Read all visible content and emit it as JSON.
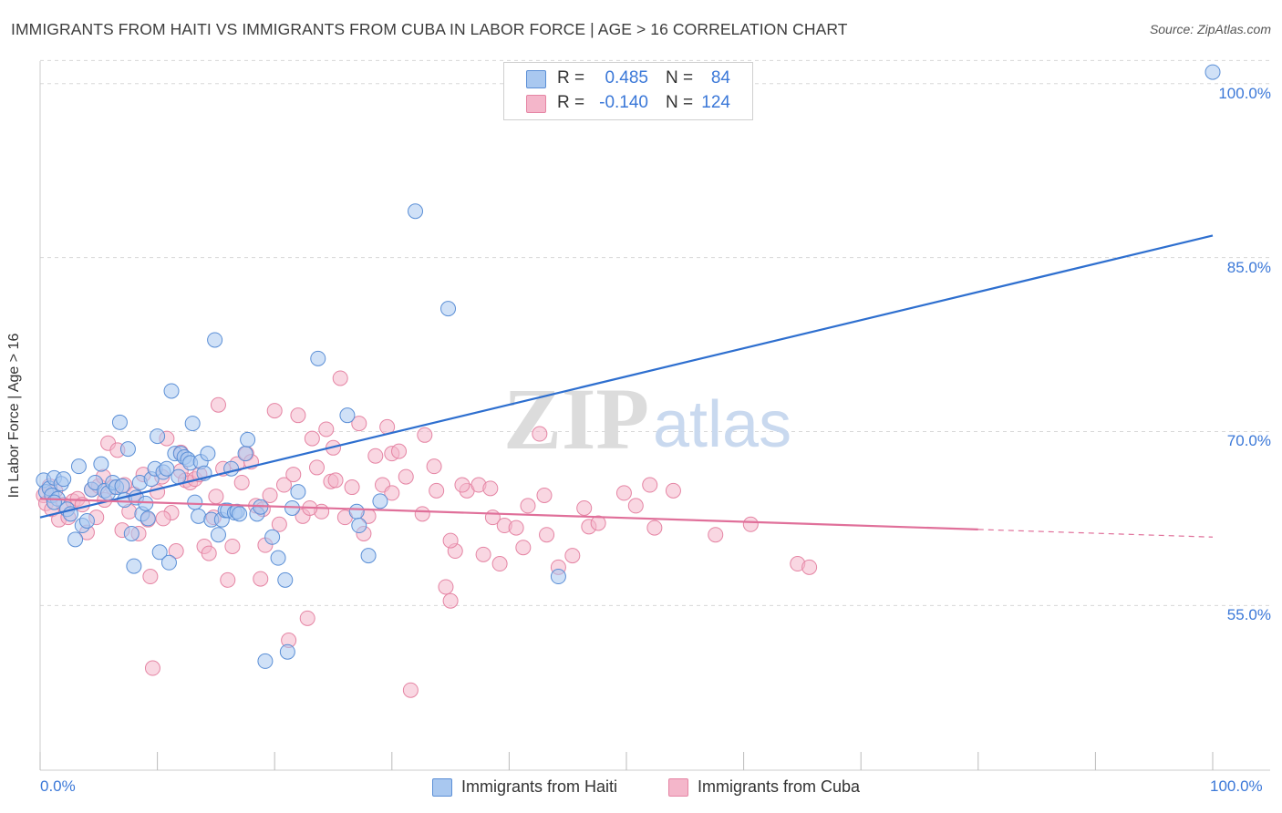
{
  "header": {
    "title": "IMMIGRANTS FROM HAITI VS IMMIGRANTS FROM CUBA IN LABOR FORCE | AGE > 16 CORRELATION CHART",
    "source": "Source: ZipAtlas.com"
  },
  "stats": {
    "r_label": "R =",
    "n_label": "N =",
    "haiti": {
      "r": "0.485",
      "n": "84"
    },
    "cuba": {
      "r": "-0.140",
      "n": "124"
    }
  },
  "watermark": {
    "zip": "ZIP",
    "atlas": "atlas"
  },
  "colors": {
    "haiti_fill": "#a9c8f0",
    "haiti_stroke": "#5b8fd6",
    "haiti_line": "#2e6fcf",
    "cuba_fill": "#f4b6ca",
    "cuba_stroke": "#e585a4",
    "cuba_line": "#e0709a",
    "tick_text": "#3b78d8",
    "grid": "#d8d8d8"
  },
  "chart_data": {
    "type": "scatter",
    "ylabel": "In Labor Force | Age > 16",
    "xlim": [
      0,
      100
    ],
    "ylim": [
      40.8,
      102.5
    ],
    "x_ticks": [
      "0.0%",
      "100.0%"
    ],
    "y_ticks": [
      {
        "value": 100.0,
        "label": "100.0%"
      },
      {
        "value": 85.0,
        "label": "85.0%"
      },
      {
        "value": 70.0,
        "label": "70.0%"
      },
      {
        "value": 55.0,
        "label": "55.0%"
      }
    ],
    "grid": true,
    "legend_position": "bottom-center",
    "series": [
      {
        "name": "Immigrants from Haiti",
        "trend": {
          "x": [
            0,
            100
          ],
          "y": [
            62.6,
            86.9
          ],
          "solid_to": 100
        },
        "points": [
          [
            0.3,
            65.8
          ],
          [
            0.5,
            64.8
          ],
          [
            0.8,
            65.1
          ],
          [
            1.0,
            64.5
          ],
          [
            1.2,
            66.0
          ],
          [
            1.5,
            64.2
          ],
          [
            1.8,
            65.5
          ],
          [
            2.0,
            65.9
          ],
          [
            2.3,
            63.3
          ],
          [
            2.6,
            62.9
          ],
          [
            3.0,
            60.7
          ],
          [
            3.3,
            67.0
          ],
          [
            3.6,
            61.9
          ],
          [
            4.0,
            62.3
          ],
          [
            4.4,
            65.0
          ],
          [
            4.7,
            65.6
          ],
          [
            5.2,
            67.2
          ],
          [
            5.5,
            64.9
          ],
          [
            5.8,
            64.7
          ],
          [
            6.2,
            65.6
          ],
          [
            6.5,
            65.2
          ],
          [
            6.8,
            70.8
          ],
          [
            7.0,
            65.3
          ],
          [
            7.2,
            64.1
          ],
          [
            7.5,
            68.5
          ],
          [
            7.8,
            61.2
          ],
          [
            8.0,
            58.4
          ],
          [
            8.2,
            64.3
          ],
          [
            8.5,
            65.6
          ],
          [
            8.7,
            62.9
          ],
          [
            9.0,
            63.8
          ],
          [
            9.2,
            62.5
          ],
          [
            9.5,
            65.9
          ],
          [
            9.8,
            66.8
          ],
          [
            10.0,
            69.6
          ],
          [
            10.2,
            59.6
          ],
          [
            10.5,
            66.5
          ],
          [
            10.8,
            66.8
          ],
          [
            11.0,
            58.7
          ],
          [
            11.2,
            73.5
          ],
          [
            11.5,
            68.1
          ],
          [
            11.8,
            66.1
          ],
          [
            12.0,
            68.1
          ],
          [
            12.3,
            67.8
          ],
          [
            12.6,
            67.6
          ],
          [
            12.8,
            67.3
          ],
          [
            13.0,
            70.7
          ],
          [
            13.2,
            63.9
          ],
          [
            13.5,
            62.7
          ],
          [
            13.7,
            67.4
          ],
          [
            14.0,
            66.4
          ],
          [
            14.3,
            68.1
          ],
          [
            14.6,
            62.4
          ],
          [
            14.9,
            77.9
          ],
          [
            15.2,
            61.1
          ],
          [
            15.5,
            62.4
          ],
          [
            15.8,
            63.2
          ],
          [
            16.0,
            63.2
          ],
          [
            16.3,
            66.8
          ],
          [
            16.6,
            63.0
          ],
          [
            16.8,
            63.1
          ],
          [
            17.0,
            62.9
          ],
          [
            17.5,
            68.1
          ],
          [
            17.7,
            69.3
          ],
          [
            18.5,
            62.9
          ],
          [
            18.8,
            63.5
          ],
          [
            19.2,
            50.2
          ],
          [
            19.8,
            60.9
          ],
          [
            20.3,
            59.1
          ],
          [
            20.9,
            57.2
          ],
          [
            21.1,
            51.0
          ],
          [
            21.5,
            63.4
          ],
          [
            22.0,
            64.8
          ],
          [
            23.7,
            76.3
          ],
          [
            26.2,
            71.4
          ],
          [
            27.0,
            63.1
          ],
          [
            27.2,
            61.9
          ],
          [
            28.0,
            59.3
          ],
          [
            29.0,
            64.0
          ],
          [
            32.0,
            89.0
          ],
          [
            34.8,
            80.6
          ],
          [
            44.2,
            57.5
          ],
          [
            100.0,
            101.0
          ],
          [
            1.2,
            63.9
          ]
        ]
      },
      {
        "name": "Immigrants from Cuba",
        "trend": {
          "x": [
            0,
            100
          ],
          "y": [
            64.2,
            60.9
          ],
          "solid_to": 80
        },
        "points": [
          [
            0.3,
            64.5
          ],
          [
            0.5,
            63.8
          ],
          [
            0.8,
            65.3
          ],
          [
            1.0,
            63.3
          ],
          [
            1.3,
            64.9
          ],
          [
            1.6,
            62.4
          ],
          [
            2.0,
            63.7
          ],
          [
            2.4,
            62.6
          ],
          [
            2.8,
            64.0
          ],
          [
            3.2,
            64.2
          ],
          [
            3.6,
            63.7
          ],
          [
            4.0,
            61.3
          ],
          [
            4.4,
            65.0
          ],
          [
            4.8,
            62.6
          ],
          [
            5.0,
            65.3
          ],
          [
            5.4,
            66.1
          ],
          [
            5.8,
            69.0
          ],
          [
            6.2,
            65.2
          ],
          [
            6.6,
            68.4
          ],
          [
            7.0,
            61.5
          ],
          [
            7.2,
            65.4
          ],
          [
            7.6,
            63.1
          ],
          [
            8.0,
            64.6
          ],
          [
            8.4,
            61.2
          ],
          [
            8.8,
            66.3
          ],
          [
            9.2,
            62.4
          ],
          [
            9.4,
            57.5
          ],
          [
            9.6,
            49.6
          ],
          [
            10.0,
            64.8
          ],
          [
            10.4,
            66.1
          ],
          [
            10.8,
            69.4
          ],
          [
            11.2,
            63.0
          ],
          [
            11.6,
            59.7
          ],
          [
            12.0,
            66.6
          ],
          [
            12.4,
            65.8
          ],
          [
            12.8,
            65.6
          ],
          [
            13.2,
            65.9
          ],
          [
            13.6,
            66.3
          ],
          [
            14.0,
            60.1
          ],
          [
            14.4,
            59.5
          ],
          [
            14.8,
            62.6
          ],
          [
            15.2,
            72.3
          ],
          [
            15.6,
            66.8
          ],
          [
            16.0,
            57.2
          ],
          [
            16.4,
            60.1
          ],
          [
            16.8,
            67.2
          ],
          [
            17.2,
            65.6
          ],
          [
            17.6,
            68.1
          ],
          [
            18.0,
            67.4
          ],
          [
            18.4,
            63.6
          ],
          [
            18.8,
            57.3
          ],
          [
            19.2,
            60.2
          ],
          [
            19.6,
            64.5
          ],
          [
            20.0,
            71.8
          ],
          [
            20.4,
            62.0
          ],
          [
            20.8,
            65.4
          ],
          [
            21.2,
            52.0
          ],
          [
            21.6,
            66.3
          ],
          [
            22.0,
            71.4
          ],
          [
            22.4,
            62.7
          ],
          [
            22.8,
            53.9
          ],
          [
            23.2,
            69.4
          ],
          [
            23.6,
            66.9
          ],
          [
            24.0,
            63.1
          ],
          [
            24.4,
            70.2
          ],
          [
            24.8,
            65.7
          ],
          [
            25.2,
            65.8
          ],
          [
            25.6,
            74.6
          ],
          [
            26.0,
            62.6
          ],
          [
            27.2,
            70.7
          ],
          [
            27.6,
            61.2
          ],
          [
            28.0,
            62.7
          ],
          [
            28.6,
            67.9
          ],
          [
            29.2,
            65.4
          ],
          [
            29.6,
            70.4
          ],
          [
            30.0,
            68.1
          ],
          [
            30.6,
            68.3
          ],
          [
            31.2,
            66.1
          ],
          [
            31.6,
            47.7
          ],
          [
            32.6,
            62.9
          ],
          [
            32.8,
            69.7
          ],
          [
            33.6,
            67.0
          ],
          [
            33.8,
            64.9
          ],
          [
            34.6,
            56.6
          ],
          [
            35.0,
            55.4
          ],
          [
            35.4,
            59.7
          ],
          [
            36.4,
            64.9
          ],
          [
            37.4,
            65.4
          ],
          [
            37.8,
            59.4
          ],
          [
            38.4,
            65.1
          ],
          [
            38.6,
            62.6
          ],
          [
            39.2,
            58.6
          ],
          [
            39.6,
            61.9
          ],
          [
            40.6,
            61.7
          ],
          [
            41.2,
            60.0
          ],
          [
            41.6,
            63.6
          ],
          [
            42.6,
            69.8
          ],
          [
            43.2,
            61.1
          ],
          [
            44.2,
            58.3
          ],
          [
            45.4,
            59.3
          ],
          [
            46.4,
            63.4
          ],
          [
            46.8,
            61.8
          ],
          [
            47.6,
            62.1
          ],
          [
            49.8,
            64.7
          ],
          [
            50.8,
            63.6
          ],
          [
            52.0,
            65.4
          ],
          [
            52.4,
            61.7
          ],
          [
            54.0,
            64.9
          ],
          [
            57.6,
            61.1
          ],
          [
            60.6,
            62.0
          ],
          [
            64.6,
            58.6
          ],
          [
            65.6,
            58.3
          ],
          [
            5.5,
            64.1
          ],
          [
            15.0,
            64.4
          ],
          [
            12.0,
            68.2
          ],
          [
            26.6,
            65.2
          ],
          [
            30.0,
            64.7
          ],
          [
            35.0,
            60.6
          ],
          [
            36.0,
            65.4
          ],
          [
            23.0,
            63.4
          ],
          [
            19.0,
            63.3
          ],
          [
            10.5,
            62.5
          ],
          [
            25.0,
            68.6
          ],
          [
            43.0,
            64.5
          ]
        ]
      }
    ]
  },
  "legend": {
    "haiti_label": "Immigrants from Haiti",
    "cuba_label": "Immigrants from Cuba"
  }
}
